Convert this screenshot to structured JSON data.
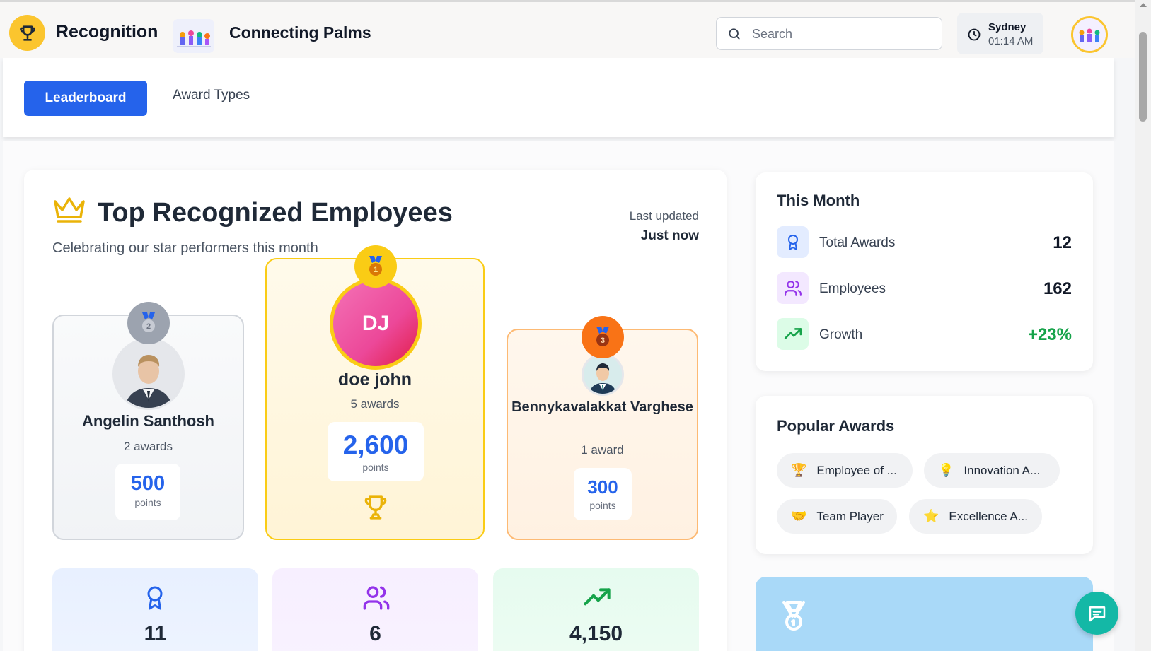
{
  "header": {
    "app_title": "Recognition",
    "org_name": "Connecting Palms",
    "search_placeholder": "Search",
    "clock": {
      "city": "Sydney",
      "time": "01:14 AM"
    }
  },
  "tabs": [
    {
      "label": "Leaderboard",
      "active": true
    },
    {
      "label": "Award Types",
      "active": false
    }
  ],
  "leaderboard": {
    "title": "Top Recognized Employees",
    "subtitle": "Celebrating our star performers this month",
    "updated_label": "Last updated",
    "updated_value": "Just now",
    "podium": [
      {
        "rank": "1",
        "initials": "DJ",
        "name": "doe john",
        "awards": "5 awards",
        "points": "2,600",
        "points_label": "points"
      },
      {
        "rank": "2",
        "name": "Angelin Santhosh",
        "awards": "2 awards",
        "points": "500",
        "points_label": "points"
      },
      {
        "rank": "3",
        "name": "Bennykavalakkat Varghese",
        "awards": "1 award",
        "points": "300",
        "points_label": "points"
      }
    ],
    "stats": [
      {
        "icon": "award-icon",
        "value": "11",
        "color": "#2563eb"
      },
      {
        "icon": "users-icon",
        "value": "6",
        "color": "#9333ea"
      },
      {
        "icon": "trending-up-icon",
        "value": "4,150",
        "color": "#16a34a"
      }
    ]
  },
  "this_month": {
    "title": "This Month",
    "rows": [
      {
        "label": "Total Awards",
        "value": "12",
        "icon": "award-icon"
      },
      {
        "label": "Employees",
        "value": "162",
        "icon": "users-icon"
      },
      {
        "label": "Growth",
        "value": "+23%",
        "icon": "trending-up-icon"
      }
    ]
  },
  "popular_awards": {
    "title": "Popular Awards",
    "chips": [
      {
        "emoji": "🏆",
        "label": "Employee of ..."
      },
      {
        "emoji": "💡",
        "label": "Innovation A..."
      },
      {
        "emoji": "🤝",
        "label": "Team Player"
      },
      {
        "emoji": "⭐",
        "label": "Excellence A..."
      }
    ]
  },
  "colors": {
    "primary": "#2563eb",
    "gold": "#facc15",
    "silver": "#9ca3af",
    "bronze": "#f97316",
    "growth": "#16a34a",
    "chat": "#14b8a6"
  }
}
